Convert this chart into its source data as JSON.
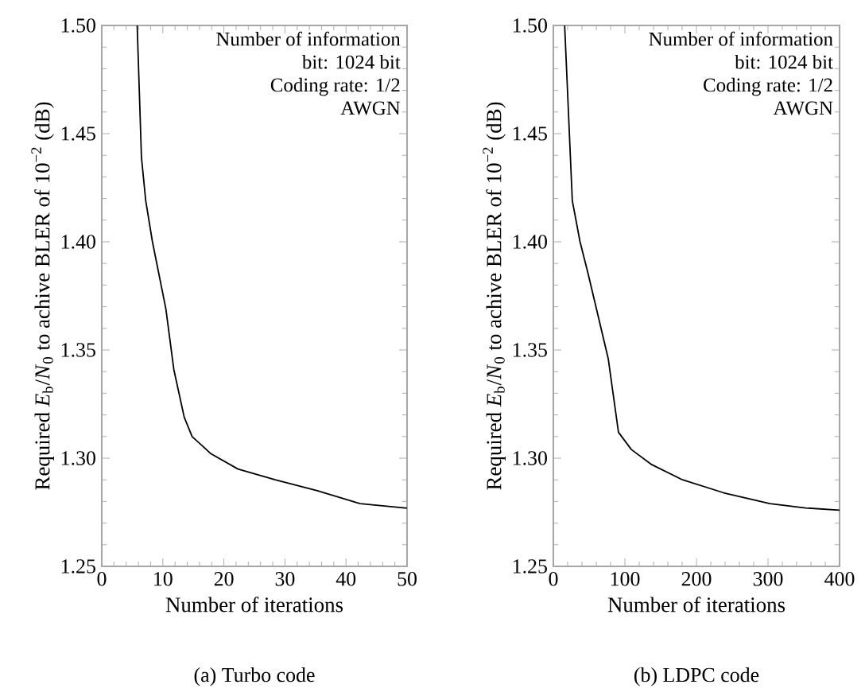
{
  "chart_data": [
    {
      "type": "line",
      "xlabel": "Number of iterations",
      "ylabel": "Required *E*$_{b}$/*N*$_{0}$ to achive BLER of 10$^{−2}$ (dB)",
      "series": [
        {
          "color": "#000000",
          "x": [
            5.8,
            6.5,
            7.2,
            8.3,
            10.5,
            11.8,
            13.5,
            14.8,
            17.9,
            22.3,
            28.4,
            35.3,
            42.3,
            49.7,
            50
          ],
          "values": [
            1.5,
            1.439,
            1.419,
            1.4,
            1.369,
            1.341,
            1.319,
            1.31,
            1.302,
            1.295,
            1.29,
            1.285,
            1.279,
            1.277,
            1.277
          ]
        }
      ],
      "xlim": [
        0,
        50
      ],
      "xticks": [
        0,
        10,
        20,
        30,
        40,
        50
      ],
      "ylim": [
        1.25,
        1.5
      ],
      "yticks": [
        1.25,
        {
          "value": 1.3,
          "label": "1.30"
        },
        1.35,
        {
          "value": 1.4,
          "label": "1.40"
        },
        1.45,
        {
          "value": 1.5,
          "label": "1.50"
        }
      ],
      "annotations": [
        "Number of information bit: 1024 bit",
        "Coding rate: 1/2",
        "AWGN",
        "(a) Turbo code"
      ],
      "line_style": "solid",
      "marker": "none"
    },
    {
      "type": "line",
      "xlabel": "Number of iterations",
      "ylabel": "Required *E*$_{b}$/*N*$_{0}$ to achive BLER of 10$^{−2}$ (dB)",
      "series": [
        {
          "color": "#000000",
          "x": [
            15.8,
            26.5,
            37.3,
            48,
            62.4,
            76.7,
            91,
            109,
            137.6,
            180.6,
            238,
            302.6,
            352.7,
            400
          ],
          "values": [
            1.5,
            1.419,
            1.4,
            1.386,
            1.366,
            1.346,
            1.312,
            1.304,
            1.297,
            1.29,
            1.284,
            1.279,
            1.277,
            1.276
          ]
        }
      ],
      "xlim": [
        0,
        400
      ],
      "xticks": [
        0,
        100,
        200,
        300,
        400
      ],
      "ylim": [
        1.25,
        1.5
      ],
      "yticks": [
        1.25,
        {
          "value": 1.3,
          "label": "1.30"
        },
        1.35,
        {
          "value": 1.4,
          "label": "1.40"
        },
        1.45,
        {
          "value": 1.5,
          "label": "1.50"
        }
      ],
      "annotations": [
        "Number of information bit: 1024 bit",
        "Coding rate: 1/2",
        "AWGN",
        "(b) LDPC code"
      ],
      "line_style": "solid",
      "marker": "none"
    }
  ]
}
